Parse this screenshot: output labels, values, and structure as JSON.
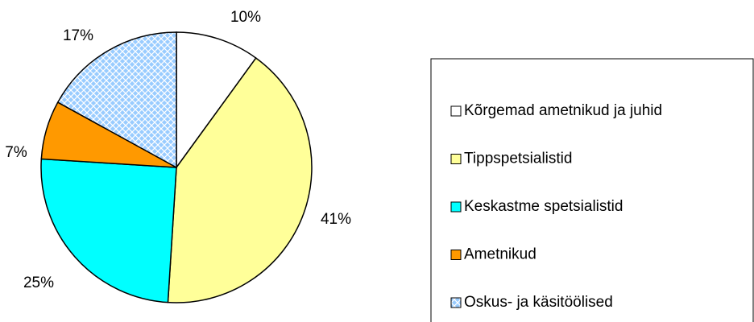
{
  "chart_data": {
    "type": "pie",
    "categories": [
      "Kõrgemad ametnikud ja juhid",
      "Tippspetsialistid",
      "Keskastme spetsialistid",
      "Ametnikud",
      "Oskus- ja käsitöölised"
    ],
    "values": [
      10,
      41,
      25,
      7,
      17
    ],
    "value_labels": [
      "10%",
      "41%",
      "25%",
      "7%",
      "17%"
    ],
    "colors": [
      "#ffffff",
      "#ffff99",
      "#00ffff",
      "#ff9900",
      "#99ccff"
    ],
    "legend": "right"
  }
}
